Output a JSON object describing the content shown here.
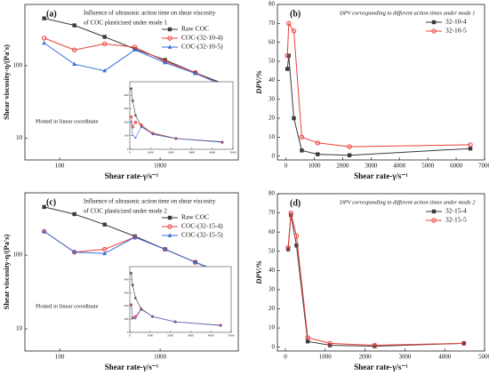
{
  "chart_data": [
    {
      "type": "line",
      "panel": "(a)",
      "title": [
        "Influence of ultrasonic action time on shear viscosity",
        "of COC plasticized under mode 1"
      ],
      "xlabel": "Shear rate-γ/s⁻¹",
      "ylabel": "Shear viscosity-η/(Pa's)",
      "xlog": true,
      "ylog": true,
      "xlim": [
        45,
        6000
      ],
      "ylim": [
        5,
        700
      ],
      "xticks": [
        100,
        1000
      ],
      "yticks": [
        10,
        100
      ],
      "x": [
        70,
        140,
        280,
        560,
        1120,
        2240,
        4480
      ],
      "legend": "upper right",
      "series": [
        {
          "name": "Raw COC",
          "color": "#3a3a3a",
          "marker": "square",
          "values": [
            450,
            360,
            250,
            170,
            120,
            80,
            55
          ]
        },
        {
          "name": "COC-(32-10-4)",
          "color": "#e8413c",
          "marker": "circle",
          "values": [
            240,
            165,
            200,
            180,
            115,
            80,
            52
          ]
        },
        {
          "name": "COC-(32-10-5)",
          "color": "#3a6fd8",
          "marker": "triangle",
          "values": [
            205,
            105,
            85,
            165,
            110,
            78,
            52
          ]
        }
      ],
      "annotation": "Plotted in linear coordinate",
      "inset": {
        "xlim": [
          0,
          5000
        ],
        "ylim": [
          0,
          500
        ],
        "xticks": [
          0,
          1000,
          2000,
          3000,
          4000,
          5000
        ],
        "yticks": [
          0,
          100,
          200,
          300,
          400
        ]
      }
    },
    {
      "type": "line",
      "panel": "(b)",
      "title": [
        "DPV corresponding to different action times under mode 1"
      ],
      "xlabel": "Shear rate-γ/s⁻¹",
      "ylabel": "DPV/%",
      "xlog": false,
      "ylog": false,
      "xlim": [
        -300,
        7000
      ],
      "ylim": [
        -2,
        80
      ],
      "xticks": [
        0,
        1000,
        2000,
        3000,
        4000,
        5000,
        6000,
        7000
      ],
      "yticks": [
        0,
        10,
        20,
        30,
        40,
        50,
        60,
        70,
        80
      ],
      "x": [
        50,
        100,
        280,
        560,
        1120,
        2240,
        6500
      ],
      "legend": "upper right",
      "series": [
        {
          "name": "32-10-4",
          "color": "#3a3a3a",
          "marker": "square",
          "values": [
            46,
            53,
            20,
            3,
            1,
            0.5,
            4
          ]
        },
        {
          "name": "32-10-5",
          "color": "#e8413c",
          "marker": "circle",
          "values": [
            53,
            70,
            66,
            10,
            7,
            5,
            6
          ]
        }
      ]
    },
    {
      "type": "line",
      "panel": "(c)",
      "title": [
        "Influence of ultrasonic action time on shear viscosity",
        "of COC plasticized under mode 2"
      ],
      "xlabel": "Shear rate-γ/s⁻¹",
      "ylabel": "Shear viscosity-η/(Pa's)",
      "xlog": true,
      "ylog": true,
      "xlim": [
        45,
        6000
      ],
      "ylim": [
        5,
        700
      ],
      "xticks": [
        100,
        1000
      ],
      "yticks": [
        10,
        100
      ],
      "x": [
        70,
        140,
        280,
        560,
        1120,
        2240,
        4480
      ],
      "legend": "upper right",
      "series": [
        {
          "name": "Raw COC",
          "color": "#3a3a3a",
          "marker": "square",
          "values": [
            450,
            360,
            260,
            180,
            120,
            80,
            55
          ]
        },
        {
          "name": "COC-(32-15-4)",
          "color": "#e8413c",
          "marker": "circle",
          "values": [
            210,
            110,
            120,
            175,
            120,
            80,
            53
          ]
        },
        {
          "name": "COC-(32-15-5)",
          "color": "#3a6fd8",
          "marker": "triangle",
          "values": [
            210,
            110,
            105,
            175,
            120,
            80,
            52
          ]
        }
      ],
      "annotation": "Plotted in linear coordinate",
      "inset": {
        "xlim": [
          0,
          5000
        ],
        "ylim": [
          0,
          500
        ],
        "xticks": [
          0,
          1000,
          2000,
          3000,
          4000,
          5000
        ],
        "yticks": [
          0,
          100,
          200,
          300,
          400
        ]
      }
    },
    {
      "type": "line",
      "panel": "(d)",
      "title": [
        "DPV corresponding to different action times under mode 2"
      ],
      "xlabel": "Shear rate-γ/s⁻¹",
      "ylabel": "DPV/%",
      "xlog": false,
      "ylog": false,
      "xlim": [
        -200,
        5000
      ],
      "ylim": [
        -2,
        80
      ],
      "xticks": [
        0,
        1000,
        2000,
        3000,
        4000,
        5000
      ],
      "yticks": [
        0,
        10,
        20,
        30,
        40,
        50,
        60,
        70,
        80
      ],
      "x": [
        70,
        140,
        280,
        560,
        1120,
        2240,
        4480
      ],
      "legend": "upper right",
      "series": [
        {
          "name": "32-15-4",
          "color": "#3a3a3a",
          "marker": "square",
          "values": [
            51,
            69,
            53,
            3,
            1,
            0.5,
            2
          ]
        },
        {
          "name": "32-15-5",
          "color": "#e8413c",
          "marker": "circle",
          "values": [
            52,
            70,
            58,
            5,
            2,
            1,
            2
          ]
        }
      ]
    }
  ]
}
